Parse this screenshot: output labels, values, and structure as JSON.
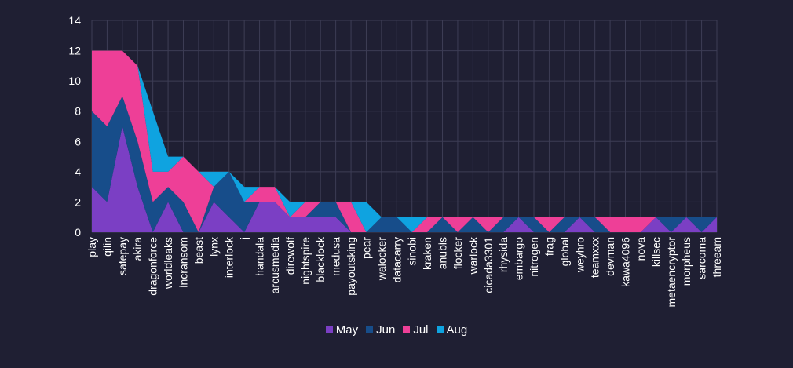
{
  "chart_data": {
    "type": "area",
    "stacked": true,
    "categories": [
      "play",
      "qilin",
      "safepay",
      "akira",
      "dragonforce",
      "worldleaks",
      "incransom",
      "beast",
      "lynx",
      "interlock",
      "j",
      "handala",
      "arcusmedia",
      "direwolf",
      "nightspire",
      "blacklock",
      "medusa",
      "payoutsking",
      "pear",
      "walocker",
      "datacarry",
      "sinobi",
      "kraken",
      "anubis",
      "flocker",
      "warlock",
      "cicada3301",
      "rhysida",
      "embargo",
      "nitrogen",
      "frag",
      "global",
      "weyhro",
      "teamxxx",
      "devman",
      "kawa4096",
      "nova",
      "killsec",
      "metaencryptor",
      "morpheus",
      "sarcoma",
      "threeam"
    ],
    "series": [
      {
        "name": "May",
        "color": "#7b3fc4",
        "values": [
          3,
          2,
          7,
          3,
          0,
          2,
          0,
          0,
          2,
          1,
          0,
          2,
          2,
          1,
          1,
          1,
          1,
          0,
          0,
          0,
          0,
          0,
          0,
          0,
          0,
          0,
          0,
          0,
          1,
          0,
          0,
          0,
          1,
          0,
          0,
          0,
          0,
          1,
          0,
          1,
          0,
          1
        ]
      },
      {
        "name": "Jun",
        "color": "#174d8a",
        "values": [
          5,
          5,
          2,
          3,
          2,
          1,
          2,
          0,
          1,
          3,
          2,
          0,
          0,
          0,
          0,
          1,
          1,
          0,
          0,
          1,
          1,
          0,
          0,
          1,
          0,
          1,
          0,
          1,
          0,
          1,
          0,
          1,
          0,
          1,
          0,
          0,
          0,
          0,
          1,
          0,
          1,
          0
        ]
      },
      {
        "name": "Jul",
        "color": "#ee3f97",
        "values": [
          4,
          5,
          3,
          5,
          2,
          1,
          3,
          4,
          0,
          0,
          0,
          1,
          1,
          0,
          1,
          0,
          0,
          2,
          0,
          0,
          0,
          0,
          1,
          0,
          1,
          0,
          1,
          0,
          0,
          0,
          1,
          0,
          0,
          0,
          1,
          1,
          1,
          0,
          0,
          0,
          0,
          0
        ]
      },
      {
        "name": "Aug",
        "color": "#0fa3e0",
        "values": [
          0,
          0,
          0,
          0,
          4,
          1,
          0,
          0,
          1,
          0,
          1,
          0,
          0,
          1,
          0,
          0,
          0,
          0,
          2,
          0,
          0,
          1,
          0,
          0,
          0,
          0,
          0,
          0,
          0,
          0,
          0,
          0,
          0,
          0,
          0,
          0,
          0,
          0,
          0,
          0,
          0,
          0
        ]
      }
    ],
    "ylim": [
      0,
      14
    ],
    "yticks": [
      0,
      2,
      4,
      6,
      8,
      10,
      12,
      14
    ],
    "grid": true,
    "legend_position": "bottom"
  }
}
